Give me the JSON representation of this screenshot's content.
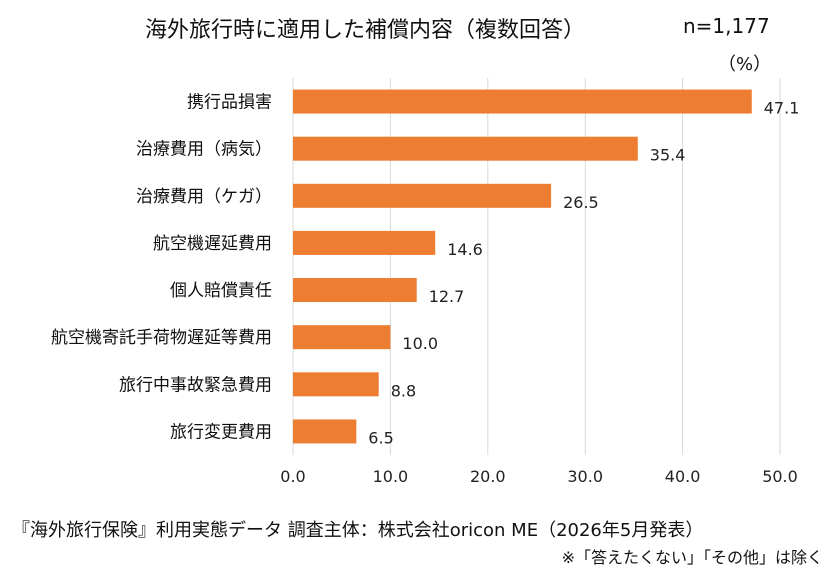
{
  "chart_data": {
    "type": "bar",
    "orientation": "horizontal",
    "title": "海外旅行時に適用した補償内容（複数回答）",
    "sample_size": "n=1,177",
    "unit": "（%）",
    "categories": [
      "携行品損害",
      "治療費用（病気）",
      "治療費用（ケガ）",
      "航空機遅延費用",
      "個人賠償責任",
      "航空機寄託手荷物遅延等費用",
      "旅行中事故緊急費用",
      "旅行変更費用"
    ],
    "values": [
      47.1,
      35.4,
      26.5,
      14.6,
      12.7,
      10.0,
      8.8,
      6.5
    ],
    "value_labels": [
      "47.1",
      "35.4",
      "26.5",
      "14.6",
      "12.7",
      "10.0",
      "8.8",
      "6.5"
    ],
    "xlim": [
      0,
      50
    ],
    "x_ticks": [
      "0.0",
      "10.0",
      "20.0",
      "30.0",
      "40.0",
      "50.0"
    ],
    "x_tick_values": [
      0,
      10,
      20,
      30,
      40,
      50
    ],
    "grid": true,
    "bar_color": "#ED7D31",
    "grid_color": "#d9d9d9"
  },
  "footer": {
    "source": "『海外旅行保険』利用実態データ 調査主体：株式会社oricon ME（2026年5月発表）",
    "note": "※「答えたくない」「その他」は除く"
  }
}
